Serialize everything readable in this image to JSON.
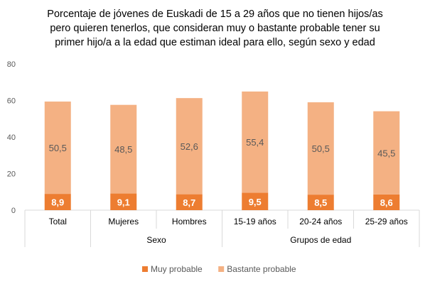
{
  "chart_data": {
    "type": "bar",
    "stacked": true,
    "title_lines": [
      "Porcentaje de jóvenes de Euskadi de 15 a 29 años que no tienen hijos/as",
      "pero quieren tenerlos, que consideran muy o bastante probable tener su",
      "primer hijo/a a la edad que estiman ideal para ello, según sexo y edad"
    ],
    "categories": [
      "Total",
      "Mujeres",
      "Hombres",
      "15-19 años",
      "20-24 años",
      "25-29 años"
    ],
    "groups": [
      {
        "label": "",
        "categories": [
          "Total"
        ]
      },
      {
        "label": "Sexo",
        "categories": [
          "Mujeres",
          "Hombres"
        ]
      },
      {
        "label": "Grupos de edad",
        "categories": [
          "15-19 años",
          "20-24 años",
          "25-29 años"
        ]
      }
    ],
    "series": [
      {
        "name": "Muy probable",
        "color": "#ED7D31",
        "values": [
          8.9,
          9.1,
          8.7,
          9.5,
          8.5,
          8.6
        ],
        "labels": [
          "8,9",
          "9,1",
          "8,7",
          "9,5",
          "8,5",
          "8,6"
        ]
      },
      {
        "name": "Bastante probable",
        "color": "#F4B183",
        "values": [
          50.5,
          48.5,
          52.6,
          55.4,
          50.5,
          45.5
        ],
        "labels": [
          "50,5",
          "48,5",
          "52,6",
          "55,4",
          "50,5",
          "45,5"
        ]
      }
    ],
    "ylim": [
      0,
      80
    ],
    "yticks": [
      0,
      20,
      40,
      60,
      80
    ],
    "grid": false,
    "legend_position": "bottom"
  }
}
